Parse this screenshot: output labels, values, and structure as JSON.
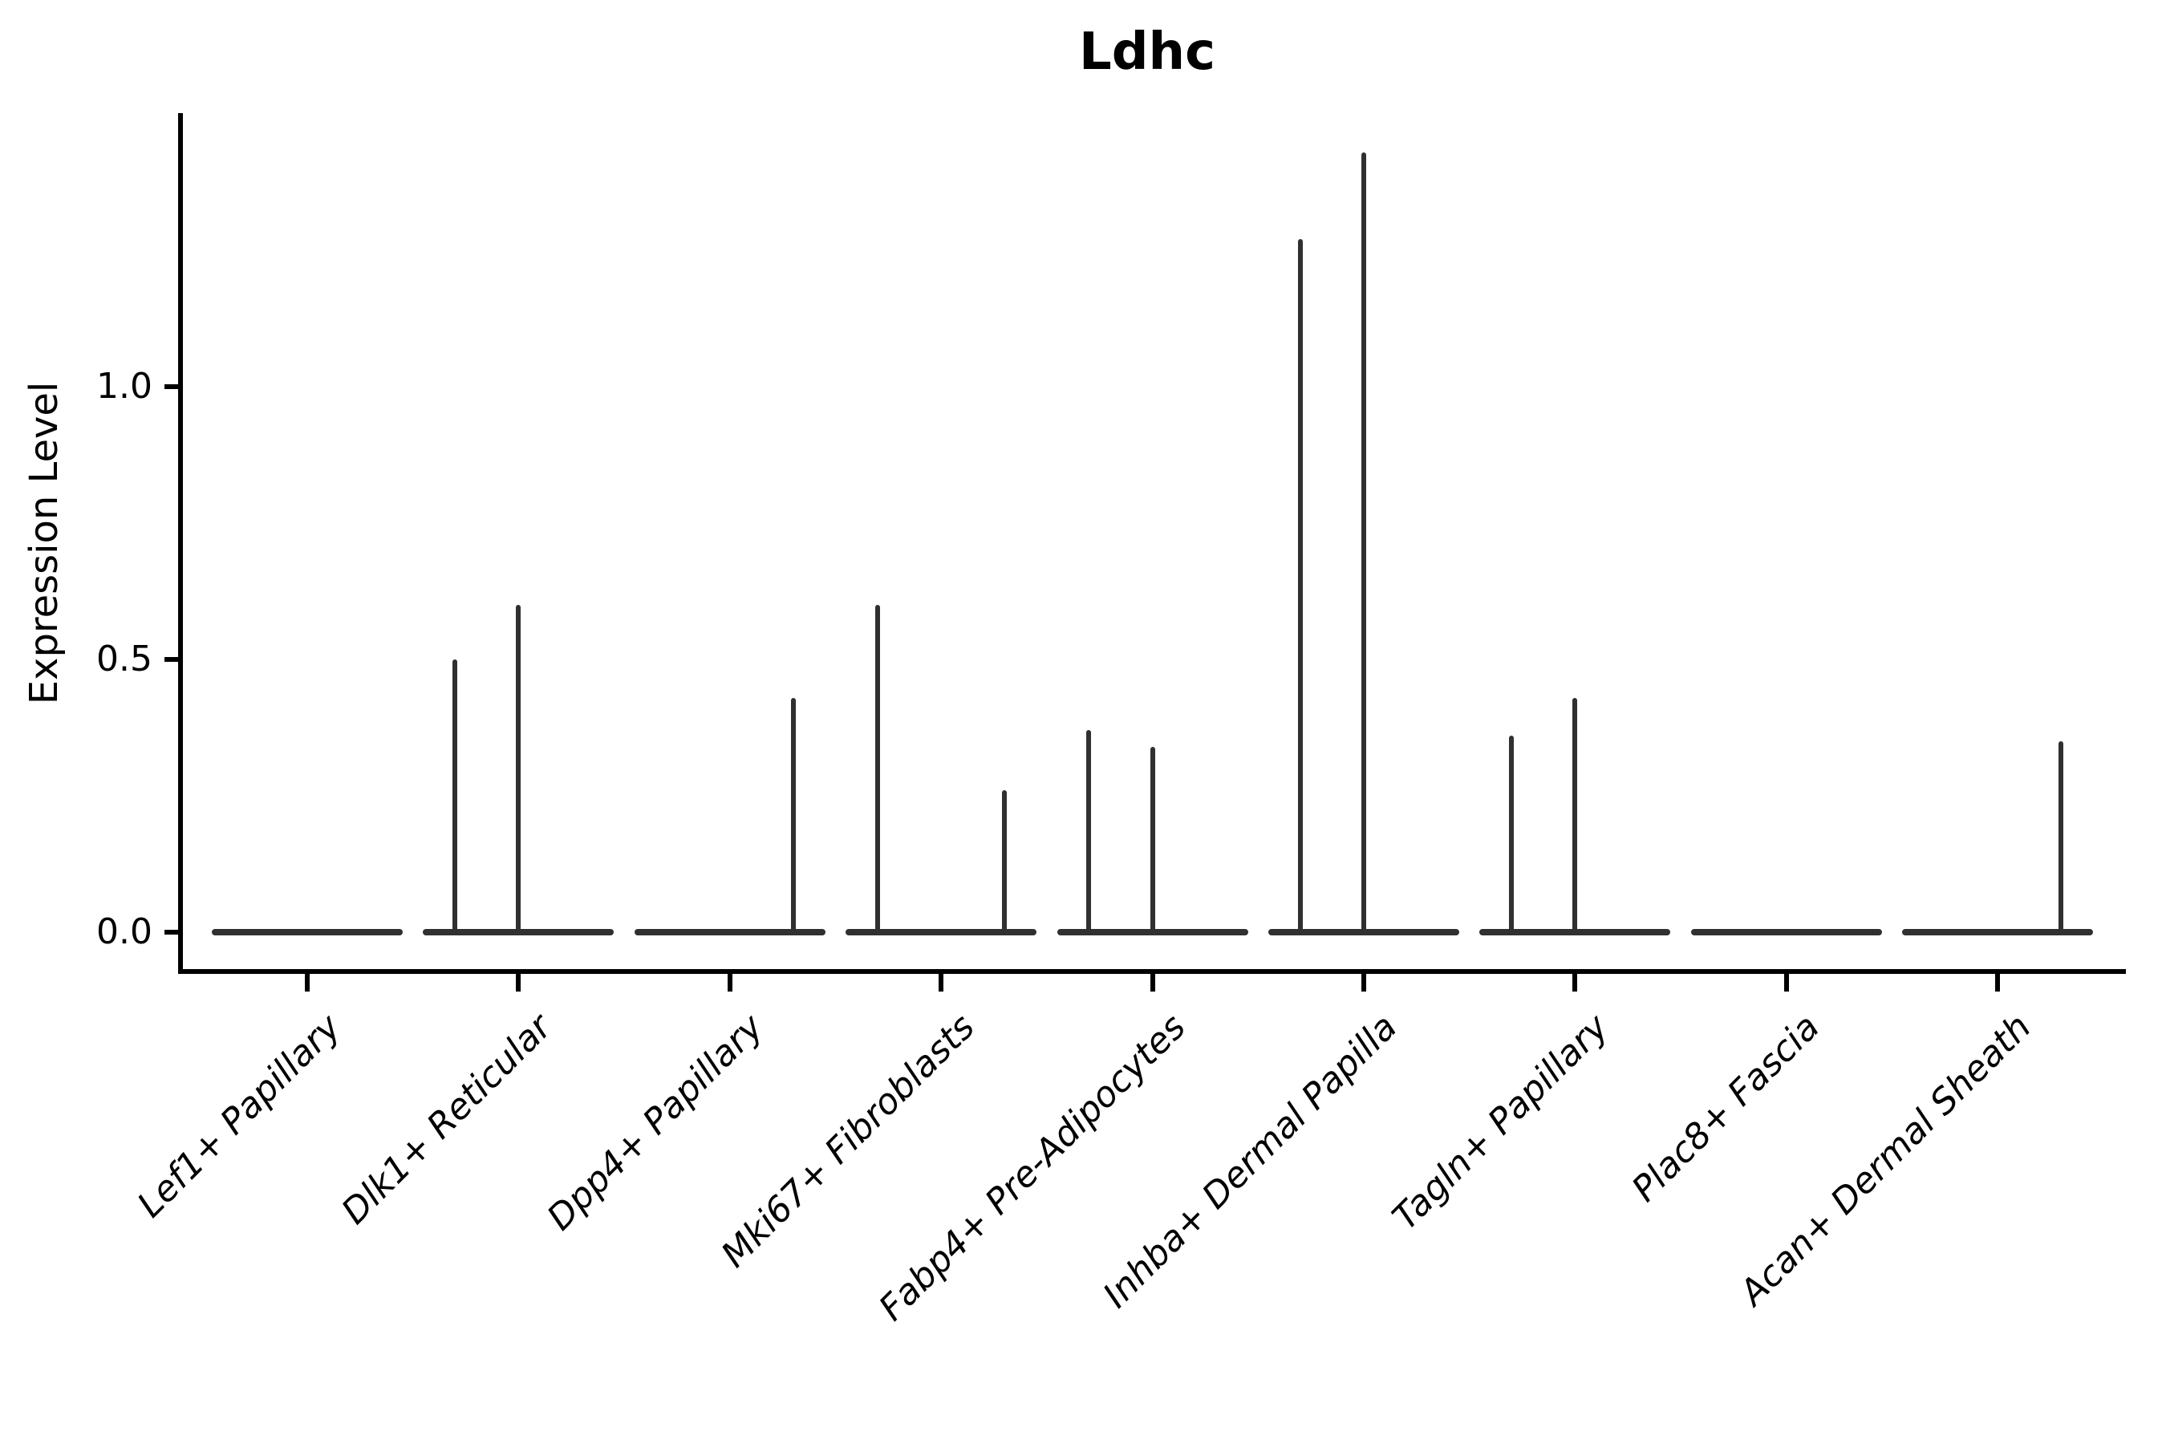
{
  "title": "Ldhc",
  "y_axis": {
    "label": "Expression Level",
    "tick_labels": [
      "0.0",
      "0.5",
      "1.0"
    ],
    "tick_values": [
      0.0,
      0.5,
      1.0
    ]
  },
  "x_axis": {
    "tick_labels": [
      "Lef1+ Papillary",
      "Dlk1+ Reticular",
      "Dpp4+ Papillary",
      "Mki67+ Fibroblasts",
      "Fabp4+ Pre-Adipocytes",
      "Inhba+ Dermal Papilla",
      "Tagln+ Papillary",
      "Plac8+ Fascia",
      "Acan+ Dermal Sheath"
    ],
    "label_rotation_deg": 45,
    "label_style": "italic"
  },
  "colors": {
    "background": "#ffffff",
    "axis": "#000000",
    "violin_stroke": "#303030",
    "text": "#000000"
  },
  "chart_data": {
    "type": "violin",
    "title": "Ldhc",
    "xlabel": "",
    "ylabel": "Expression Level",
    "ylim": [
      0,
      1.5
    ],
    "y_ticks": [
      0.0,
      0.5,
      1.0
    ],
    "grid": false,
    "legend": null,
    "description": "Single-gene expression violin plot; every cluster has a collapsed flat violin at 0 with narrow density spikes for rare expressing cells.",
    "categories": [
      "Lef1+ Papillary",
      "Dlk1+ Reticular",
      "Dpp4+ Papillary",
      "Mki67+ Fibroblasts",
      "Fabp4+ Pre-Adipocytes",
      "Inhba+ Dermal Papilla",
      "Tagln+ Papillary",
      "Plac8+ Fascia",
      "Acan+ Dermal Sheath"
    ],
    "violins": [
      {
        "category": "Lef1+ Papillary",
        "base_value": 0,
        "spikes": []
      },
      {
        "category": "Dlk1+ Reticular",
        "base_value": 0,
        "spikes": [
          {
            "pos": -0.3,
            "value": 0.5
          },
          {
            "pos": 0.0,
            "value": 0.6
          }
        ]
      },
      {
        "category": "Dpp4+ Papillary",
        "base_value": 0,
        "spikes": [
          {
            "pos": 0.3,
            "value": 0.43
          }
        ]
      },
      {
        "category": "Mki67+ Fibroblasts",
        "base_value": 0,
        "spikes": [
          {
            "pos": -0.3,
            "value": 0.6
          },
          {
            "pos": 0.3,
            "value": 0.26
          }
        ]
      },
      {
        "category": "Fabp4+ Pre-Adipocytes",
        "base_value": 0,
        "spikes": [
          {
            "pos": -0.3,
            "value": 0.37
          },
          {
            "pos": 0.0,
            "value": 0.34
          }
        ]
      },
      {
        "category": "Inhba+ Dermal Papilla",
        "base_value": 0,
        "spikes": [
          {
            "pos": -0.3,
            "value": 1.27
          },
          {
            "pos": 0.0,
            "value": 1.43
          }
        ]
      },
      {
        "category": "Tagln+ Papillary",
        "base_value": 0,
        "spikes": [
          {
            "pos": -0.3,
            "value": 0.36
          },
          {
            "pos": 0.0,
            "value": 0.43
          }
        ]
      },
      {
        "category": "Plac8+ Fascia",
        "base_value": 0,
        "spikes": []
      },
      {
        "category": "Acan+ Dermal Sheath",
        "base_value": 0,
        "spikes": [
          {
            "pos": 0.3,
            "value": 0.35
          }
        ]
      }
    ]
  }
}
